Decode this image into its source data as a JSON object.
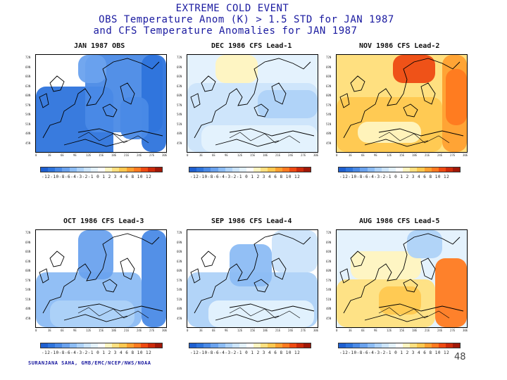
{
  "title": {
    "line1": "EXTREME COLD EVENT",
    "line2": "OBS Temperature Anom (K) > 1.5 STD for JAN 1987",
    "line3": "and CFS Temperature Anomalies for JAN 1987"
  },
  "panels": [
    {
      "title": "JAN 1987 OBS",
      "scheme": "cold-strong"
    },
    {
      "title": "DEC 1986 CFS Lead-1",
      "scheme": "light-mixed"
    },
    {
      "title": "NOV 1986 CFS Lead-2",
      "scheme": "warm"
    },
    {
      "title": "OCT 1986 CFS Lead-3",
      "scheme": "cold-moderate"
    },
    {
      "title": "SEP 1986 CFS Lead-4",
      "scheme": "cold-light"
    },
    {
      "title": "AUG 1986 CFS Lead-5",
      "scheme": "warm-moderate"
    }
  ],
  "colorbar_labels": "-12-10-8-6-4-3-2-1 0 1 2 3 4 6 8 10 12",
  "colorbar_colors": [
    "#1e5fd0",
    "#2e74dc",
    "#4a8ae6",
    "#6aa2ee",
    "#8cbcf4",
    "#aed2f8",
    "#cce4fb",
    "#e4f2fd",
    "#ffffff",
    "#fff4c0",
    "#ffe080",
    "#ffc850",
    "#ffa030",
    "#ff7a20",
    "#ee4a12",
    "#cc2a0a",
    "#a01808"
  ],
  "credit": "SURANJANA SAHA, GMB/EMC/NCEP/NWS/NOAA",
  "page_number": "48"
}
